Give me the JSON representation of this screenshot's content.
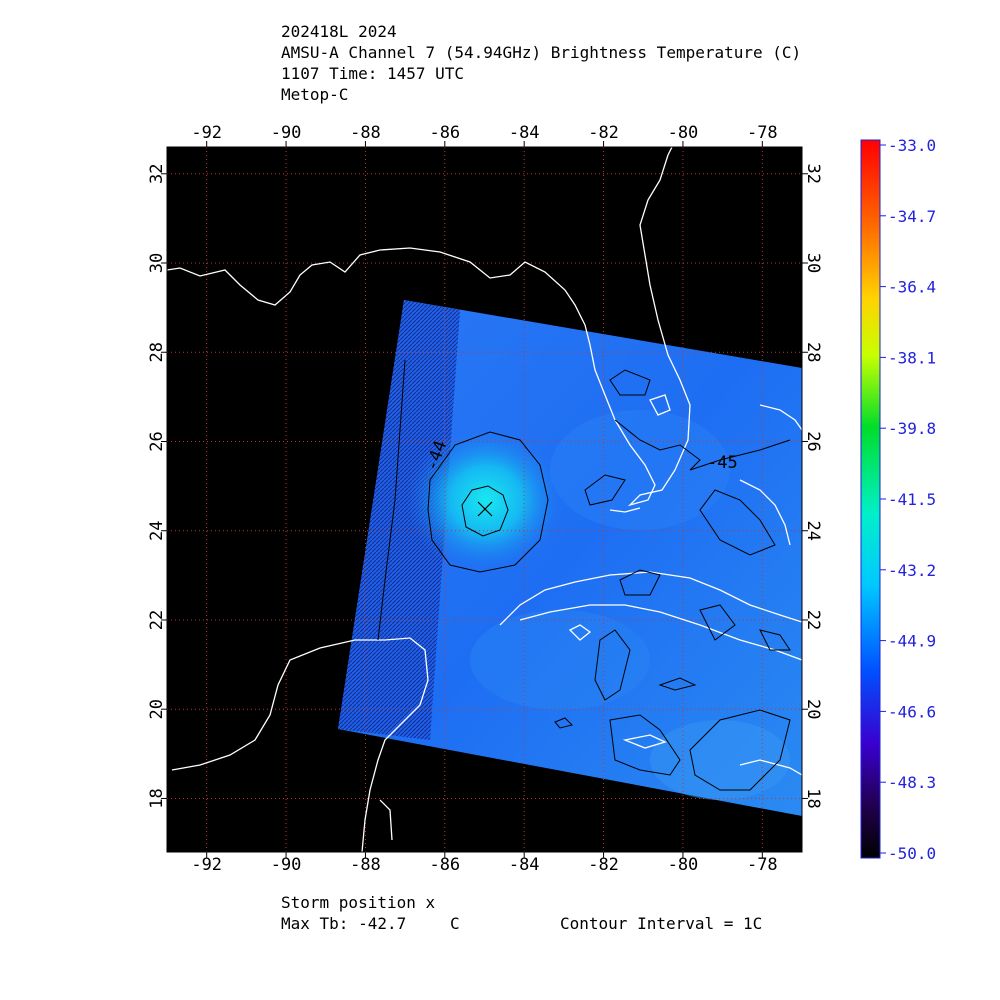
{
  "header": {
    "storm_id": "202418L 2024",
    "product": "AMSU-A Channel 7 (54.94GHz) Brightness Temperature (C)",
    "time": "1107 Time: 1457 UTC",
    "satellite": "Metop-C"
  },
  "map": {
    "lon_range": [
      -93.0,
      -77.0
    ],
    "lat_range": [
      16.8,
      32.6
    ],
    "lon_ticks": [
      "-92",
      "-90",
      "-88",
      "-86",
      "-84",
      "-82",
      "-80",
      "-78"
    ],
    "lat_ticks": [
      "18",
      "20",
      "22",
      "24",
      "26",
      "28",
      "30",
      "32"
    ],
    "contour_labels": [
      "-44",
      "-45"
    ],
    "storm_marker": "x",
    "colors": {
      "background": "#000000",
      "coastline": "#ffffff",
      "swath_base": "#1f6cf2",
      "warm_core": "#19e8f0",
      "contour": "#000000",
      "grid": "#c0392b"
    }
  },
  "colorbar": {
    "ticks": [
      "-33.0",
      "-34.7",
      "-36.4",
      "-38.1",
      "-39.8",
      "-41.5",
      "-43.2",
      "-44.9",
      "-46.6",
      "-48.3",
      "-50.0"
    ],
    "tick_color": "#2222dd"
  },
  "footer": {
    "storm_position": "Storm position x",
    "max_tb_label": "Max Tb: -42.7",
    "max_tb_unit": "C",
    "contour_interval": "Contour Interval = 1C"
  }
}
